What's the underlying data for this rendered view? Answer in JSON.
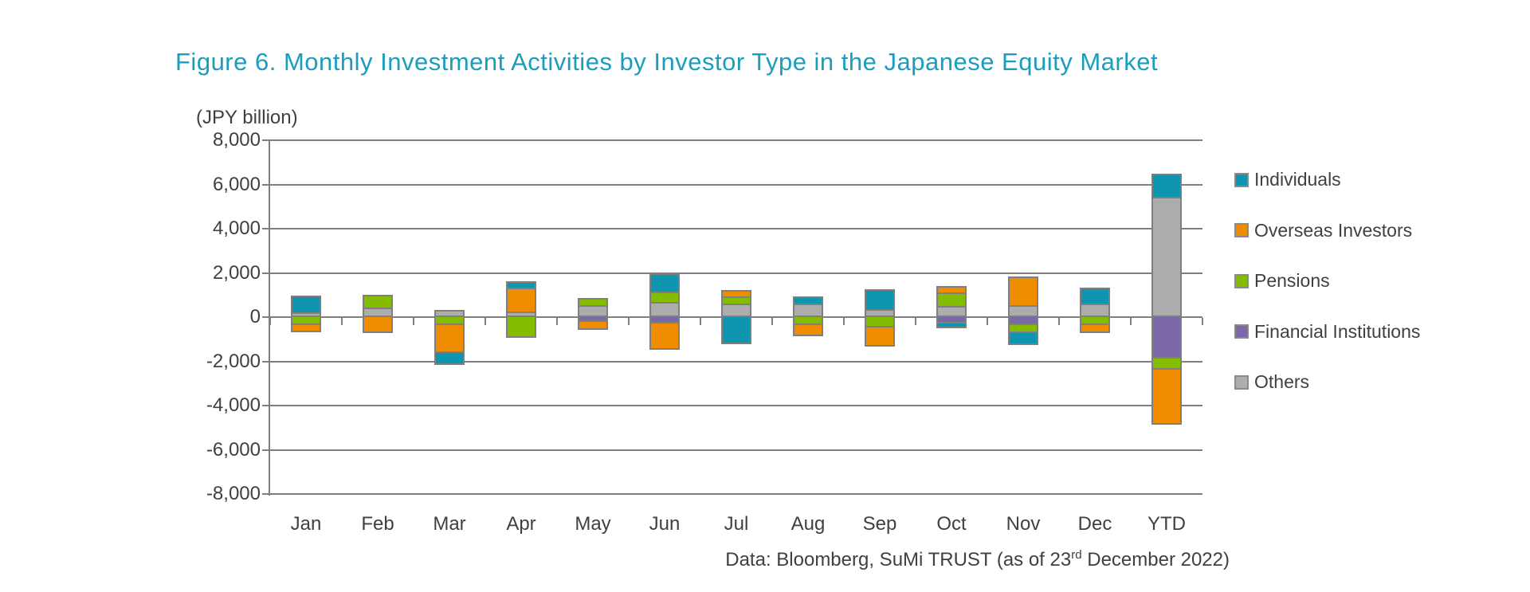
{
  "title": "Figure 6. Monthly Investment Activities by Investor Type in the Japanese Equity Market",
  "axis_unit_label": "(JPY billion)",
  "source_note": {
    "prefix": "Data: Bloomberg, SuMi TRUST (as of 23",
    "superscript": "rd",
    "suffix": " December 2022)"
  },
  "colors": {
    "title": "#1B9DBE",
    "text": "#404040",
    "grid": "#7F7F7F",
    "bar_outline": "#7F7F7F"
  },
  "chart_data": {
    "type": "bar",
    "stacked": true,
    "title": "Figure 6. Monthly Investment Activities by Investor Type in the Japanese Equity Market",
    "ylabel": "(JPY billion)",
    "ylim": [
      -8000,
      8000
    ],
    "ytick_step": 2000,
    "ytick_labels": [
      "8,000",
      "6,000",
      "4,000",
      "2,000",
      "0",
      "-2,000",
      "-4,000",
      "-6,000",
      "-8,000"
    ],
    "grid": true,
    "legend_position": "right",
    "categories": [
      "Jan",
      "Feb",
      "Mar",
      "Apr",
      "May",
      "Jun",
      "Jul",
      "Aug",
      "Sep",
      "Oct",
      "Nov",
      "Dec",
      "YTD"
    ],
    "series": [
      {
        "name": "Individuals",
        "color": "#0E95B0",
        "values": [
          700,
          0,
          -550,
          200,
          0,
          750,
          -1150,
          250,
          850,
          -250,
          -550,
          650,
          950
        ]
      },
      {
        "name": "Overseas Investors",
        "color": "#F08C00",
        "values": [
          -300,
          -650,
          -1250,
          1100,
          -350,
          -1200,
          200,
          -500,
          -850,
          250,
          1200,
          -350,
          -2500
        ]
      },
      {
        "name": "Pensions",
        "color": "#84BD00",
        "values": [
          -300,
          500,
          -300,
          -850,
          250,
          450,
          350,
          -300,
          -400,
          600,
          -350,
          -300,
          -500
        ]
      },
      {
        "name": "Financial Institutions",
        "color": "#7A68A8",
        "values": [
          0,
          0,
          0,
          0,
          -150,
          -200,
          0,
          0,
          0,
          -200,
          -300,
          0,
          -1800
        ]
      },
      {
        "name": "Others",
        "color": "#ADADAD",
        "values": [
          200,
          450,
          250,
          250,
          550,
          700,
          600,
          600,
          350,
          500,
          550,
          600,
          5450
        ]
      }
    ],
    "stack_order_from_axis": [
      "Others",
      "Financial Institutions",
      "Pensions",
      "Overseas Investors",
      "Individuals"
    ]
  }
}
